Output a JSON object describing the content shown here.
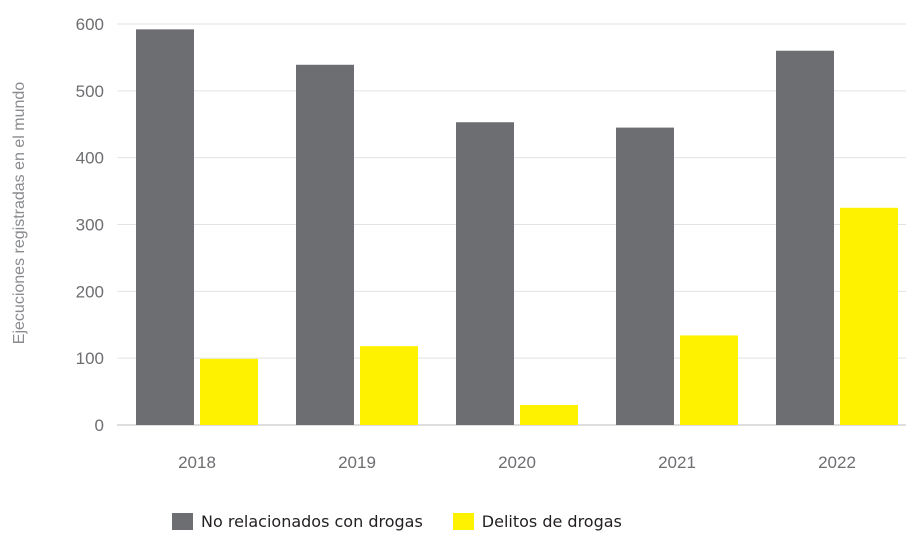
{
  "chart_data": {
    "type": "bar",
    "ylabel": "Ejecuciones registradas en el mundo",
    "xlabel": "",
    "categories": [
      "2018",
      "2019",
      "2020",
      "2021",
      "2022"
    ],
    "series": [
      {
        "name": "No relacionados con drogas",
        "color": "#6d6e71",
        "values": [
          592,
          539,
          453,
          445,
          560
        ]
      },
      {
        "name": "Delitos de drogas",
        "color": "#fff200",
        "values": [
          99,
          118,
          30,
          134,
          325
        ]
      }
    ],
    "ylim": [
      0,
      600
    ],
    "yticks": [
      0,
      100,
      200,
      300,
      400,
      500,
      600
    ],
    "grid": true,
    "legend_position": "bottom"
  }
}
